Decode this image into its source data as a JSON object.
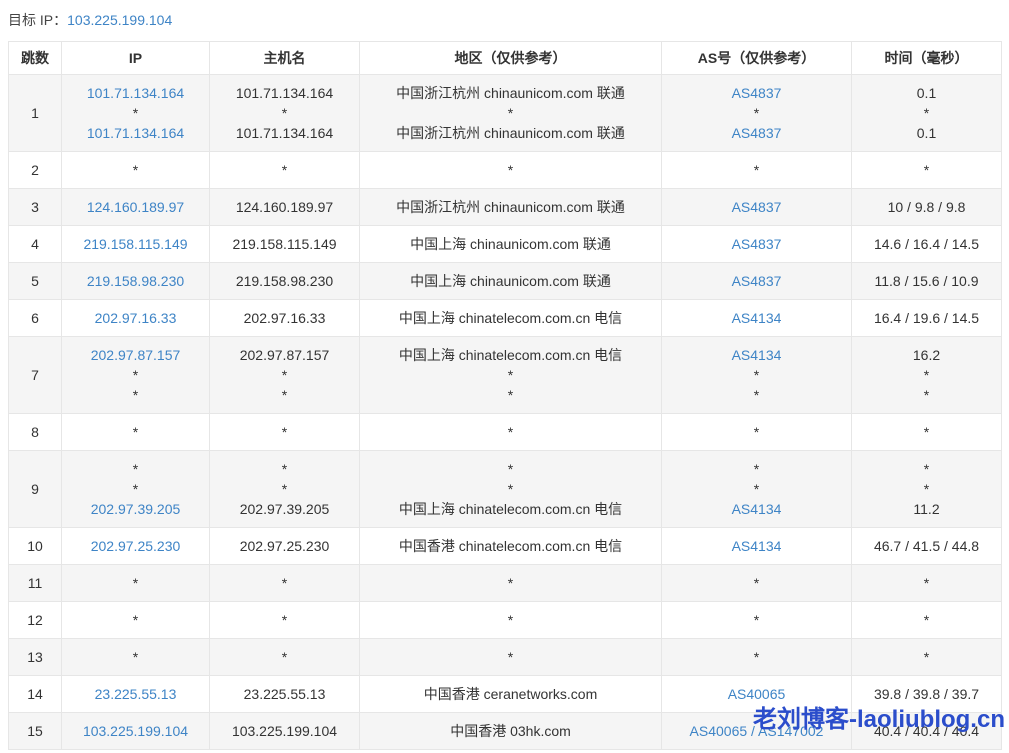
{
  "header": {
    "target_ip_label": "目标 IP：",
    "target_ip": "103.225.199.104"
  },
  "table": {
    "columns": [
      "跳数",
      "IP",
      "主机名",
      "地区（仅供参考）",
      "AS号（仅供参考）",
      "时间（毫秒）"
    ],
    "rows": [
      {
        "hop": "1",
        "ip": [
          "101.71.134.164",
          "*",
          "101.71.134.164"
        ],
        "host": [
          "101.71.134.164",
          "*",
          "101.71.134.164"
        ],
        "region": [
          "中国浙江杭州 chinaunicom.com 联通",
          "*",
          "中国浙江杭州 chinaunicom.com 联通"
        ],
        "asn": [
          "AS4837",
          "*",
          "AS4837"
        ],
        "time": [
          "0.1",
          "*",
          "0.1"
        ]
      },
      {
        "hop": "2",
        "ip": [
          "*"
        ],
        "host": [
          "*"
        ],
        "region": [
          "*"
        ],
        "asn": [
          "*"
        ],
        "time": [
          "*"
        ]
      },
      {
        "hop": "3",
        "ip": [
          "124.160.189.97"
        ],
        "host": [
          "124.160.189.97"
        ],
        "region": [
          "中国浙江杭州 chinaunicom.com 联通"
        ],
        "asn": [
          "AS4837"
        ],
        "time": [
          "10 / 9.8 / 9.8"
        ]
      },
      {
        "hop": "4",
        "ip": [
          "219.158.115.149"
        ],
        "host": [
          "219.158.115.149"
        ],
        "region": [
          "中国上海 chinaunicom.com 联通"
        ],
        "asn": [
          "AS4837"
        ],
        "time": [
          "14.6 / 16.4 / 14.5"
        ]
      },
      {
        "hop": "5",
        "ip": [
          "219.158.98.230"
        ],
        "host": [
          "219.158.98.230"
        ],
        "region": [
          "中国上海 chinaunicom.com 联通"
        ],
        "asn": [
          "AS4837"
        ],
        "time": [
          "11.8 / 15.6 / 10.9"
        ]
      },
      {
        "hop": "6",
        "ip": [
          "202.97.16.33"
        ],
        "host": [
          "202.97.16.33"
        ],
        "region": [
          "中国上海 chinatelecom.com.cn 电信"
        ],
        "asn": [
          "AS4134"
        ],
        "time": [
          "16.4 / 19.6 / 14.5"
        ]
      },
      {
        "hop": "7",
        "ip": [
          "202.97.87.157",
          "*",
          "*"
        ],
        "host": [
          "202.97.87.157",
          "*",
          "*"
        ],
        "region": [
          "中国上海 chinatelecom.com.cn 电信",
          "*",
          "*"
        ],
        "asn": [
          "AS4134",
          "*",
          "*"
        ],
        "time": [
          "16.2",
          "*",
          "*"
        ]
      },
      {
        "hop": "8",
        "ip": [
          "*"
        ],
        "host": [
          "*"
        ],
        "region": [
          "*"
        ],
        "asn": [
          "*"
        ],
        "time": [
          "*"
        ]
      },
      {
        "hop": "9",
        "ip": [
          "*",
          "*",
          "202.97.39.205"
        ],
        "host": [
          "*",
          "*",
          "202.97.39.205"
        ],
        "region": [
          "*",
          "*",
          "中国上海 chinatelecom.com.cn 电信"
        ],
        "asn": [
          "*",
          "*",
          "AS4134"
        ],
        "time": [
          "*",
          "*",
          "11.2"
        ]
      },
      {
        "hop": "10",
        "ip": [
          "202.97.25.230"
        ],
        "host": [
          "202.97.25.230"
        ],
        "region": [
          "中国香港 chinatelecom.com.cn 电信"
        ],
        "asn": [
          "AS4134"
        ],
        "time": [
          "46.7 / 41.5 / 44.8"
        ]
      },
      {
        "hop": "11",
        "ip": [
          "*"
        ],
        "host": [
          "*"
        ],
        "region": [
          "*"
        ],
        "asn": [
          "*"
        ],
        "time": [
          "*"
        ]
      },
      {
        "hop": "12",
        "ip": [
          "*"
        ],
        "host": [
          "*"
        ],
        "region": [
          "*"
        ],
        "asn": [
          "*"
        ],
        "time": [
          "*"
        ]
      },
      {
        "hop": "13",
        "ip": [
          "*"
        ],
        "host": [
          "*"
        ],
        "region": [
          "*"
        ],
        "asn": [
          "*"
        ],
        "time": [
          "*"
        ]
      },
      {
        "hop": "14",
        "ip": [
          "23.225.55.13"
        ],
        "host": [
          "23.225.55.13"
        ],
        "region": [
          "中国香港 ceranetworks.com"
        ],
        "asn": [
          "AS40065"
        ],
        "time": [
          "39.8 / 39.8 / 39.7"
        ]
      },
      {
        "hop": "15",
        "ip": [
          "103.225.199.104"
        ],
        "host": [
          "103.225.199.104"
        ],
        "region": [
          "中国香港 03hk.com"
        ],
        "asn": [
          "AS40065 / AS147002"
        ],
        "time": [
          "40.4 / 40.4 / 40.4"
        ]
      }
    ]
  },
  "watermark": {
    "text": "老刘博客-laoliublog.cn"
  },
  "colors": {
    "link_blue": "#3e84c6",
    "watermark_blue": "#2b4dcb",
    "row_alt_bg": "#f5f5f5",
    "border": "#e6e6e6",
    "text": "#333333"
  }
}
